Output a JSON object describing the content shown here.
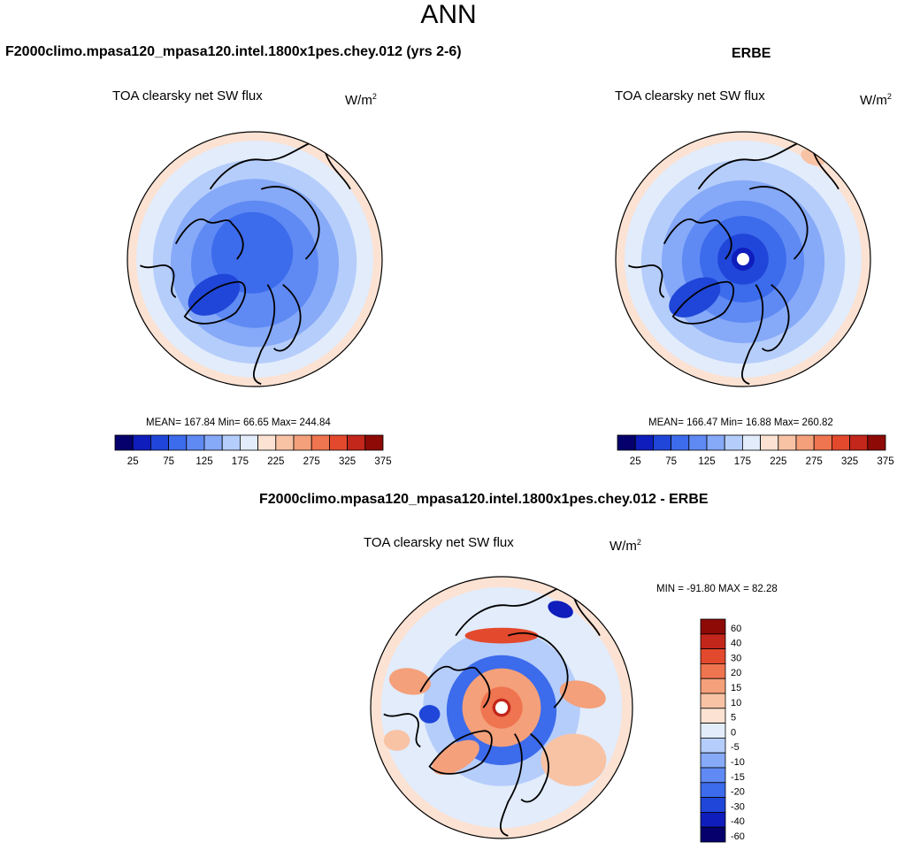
{
  "title": "ANN",
  "palette": [
    "#05006c",
    "#0e1dbb",
    "#1f46d8",
    "#3c6bec",
    "#5f8af4",
    "#86a9f8",
    "#b5cdfb",
    "#e2ecfb",
    "#fbe2d3",
    "#f8c3a5",
    "#f4a07a",
    "#ef7450",
    "#e3492d",
    "#c3261a",
    "#8d0a06"
  ],
  "land_color": "#000000",
  "panels": [
    {
      "case": "F2000climo.mpasa120_mpasa120.intel.1800x1pes.chey.012 (yrs 2-6)",
      "variable": "TOA clearsky net SW flux",
      "units_base": "W/m",
      "units_exp": "2",
      "stats_text": "MEAN= 167.84  Min=  66.65  Max= 244.84",
      "colorbar_ticks": [
        "25",
        "75",
        "125",
        "175",
        "225",
        "275",
        "325",
        "375"
      ]
    },
    {
      "case": "ERBE",
      "variable": "TOA clearsky net SW flux",
      "units_base": "W/m",
      "units_exp": "2",
      "stats_text": "MEAN= 166.47  Min=  16.88  Max= 260.82",
      "colorbar_ticks": [
        "25",
        "75",
        "125",
        "175",
        "225",
        "275",
        "325",
        "375"
      ]
    },
    {
      "case": "F2000climo.mpasa120_mpasa120.intel.1800x1pes.chey.012 - ERBE",
      "variable": "TOA clearsky net SW flux",
      "units_base": "W/m",
      "units_exp": "2",
      "stats_text": "MIN = -91.80 MAX =  82.28",
      "colorbar_ticks": [
        "60",
        "40",
        "30",
        "20",
        "15",
        "10",
        "5",
        "0",
        "-5",
        "-10",
        "-15",
        "-20",
        "-30",
        "-40",
        "-60"
      ]
    }
  ],
  "chart_data": [
    {
      "type": "heatmap",
      "title": "TOA clearsky net SW flux",
      "case": "F2000climo.mpasa120_mpasa120.intel.1800x1pes.chey.012 (yrs 2-6)",
      "units": "W/m2",
      "projection": "north polar stereographic",
      "mean": 167.84,
      "min": 66.65,
      "max": 244.84,
      "levels": [
        25,
        50,
        75,
        100,
        125,
        150,
        175,
        200,
        225,
        250,
        275,
        300,
        325,
        350,
        375
      ],
      "colorbar_ticks": [
        25,
        75,
        125,
        175,
        225,
        275,
        325,
        375
      ]
    },
    {
      "type": "heatmap",
      "title": "TOA clearsky net SW flux",
      "case": "ERBE",
      "units": "W/m2",
      "projection": "north polar stereographic",
      "mean": 166.47,
      "min": 16.88,
      "max": 260.82,
      "levels": [
        25,
        50,
        75,
        100,
        125,
        150,
        175,
        200,
        225,
        250,
        275,
        300,
        325,
        350,
        375
      ],
      "colorbar_ticks": [
        25,
        75,
        125,
        175,
        225,
        275,
        325,
        375
      ]
    },
    {
      "type": "heatmap",
      "title": "TOA clearsky net SW flux",
      "case": "F2000climo.mpasa120_mpasa120.intel.1800x1pes.chey.012 - ERBE",
      "units": "W/m2",
      "projection": "north polar stereographic",
      "min": -91.8,
      "max": 82.28,
      "levels": [
        -60,
        -40,
        -30,
        -20,
        -15,
        -10,
        -5,
        0,
        5,
        10,
        15,
        20,
        30,
        40,
        60
      ],
      "colorbar_ticks": [
        60,
        40,
        30,
        20,
        15,
        10,
        5,
        0,
        -5,
        -10,
        -15,
        -20,
        -30,
        -40,
        -60
      ]
    }
  ]
}
